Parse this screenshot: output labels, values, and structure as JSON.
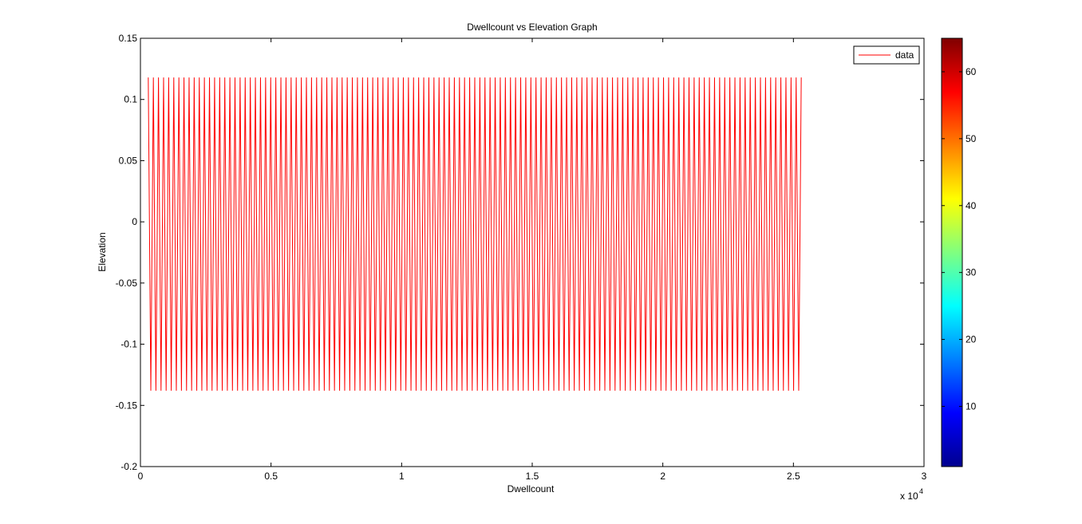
{
  "chart_data": {
    "type": "line",
    "title": "Dwellcount vs Elevation Graph",
    "xlabel": "Dwellcount",
    "ylabel": "Elevation",
    "x_multiplier_label": "x 10",
    "x_multiplier_exponent": "4",
    "xlim": [
      0,
      30000
    ],
    "ylim": [
      -0.2,
      0.15
    ],
    "x_ticks": [
      0,
      5000,
      10000,
      15000,
      20000,
      25000,
      30000
    ],
    "x_tick_labels": [
      "0",
      "0.5",
      "1",
      "1.5",
      "2",
      "2.5",
      "3"
    ],
    "y_ticks": [
      -0.2,
      -0.15,
      -0.1,
      -0.05,
      0,
      0.05,
      0.1,
      0.15
    ],
    "y_tick_labels": [
      "-0.2",
      "-0.15",
      "-0.1",
      "-0.05",
      "0",
      "0.05",
      "0.1",
      "0.15"
    ],
    "legend_position": "top-right",
    "grid": false,
    "series": [
      {
        "name": "data",
        "color": "#ff0000",
        "x_range": [
          300,
          25300
        ],
        "cycles": 128,
        "y_peak": 0.118,
        "y_trough": -0.138,
        "y_levels": [
          0.118,
          0.066,
          0.013,
          -0.036,
          -0.088,
          -0.138
        ]
      }
    ],
    "colorbar": {
      "colormap": "jet",
      "range": [
        1,
        65
      ],
      "ticks": [
        10,
        20,
        30,
        40,
        50,
        60
      ],
      "tick_labels": [
        "10",
        "20",
        "30",
        "40",
        "50",
        "60"
      ]
    }
  }
}
